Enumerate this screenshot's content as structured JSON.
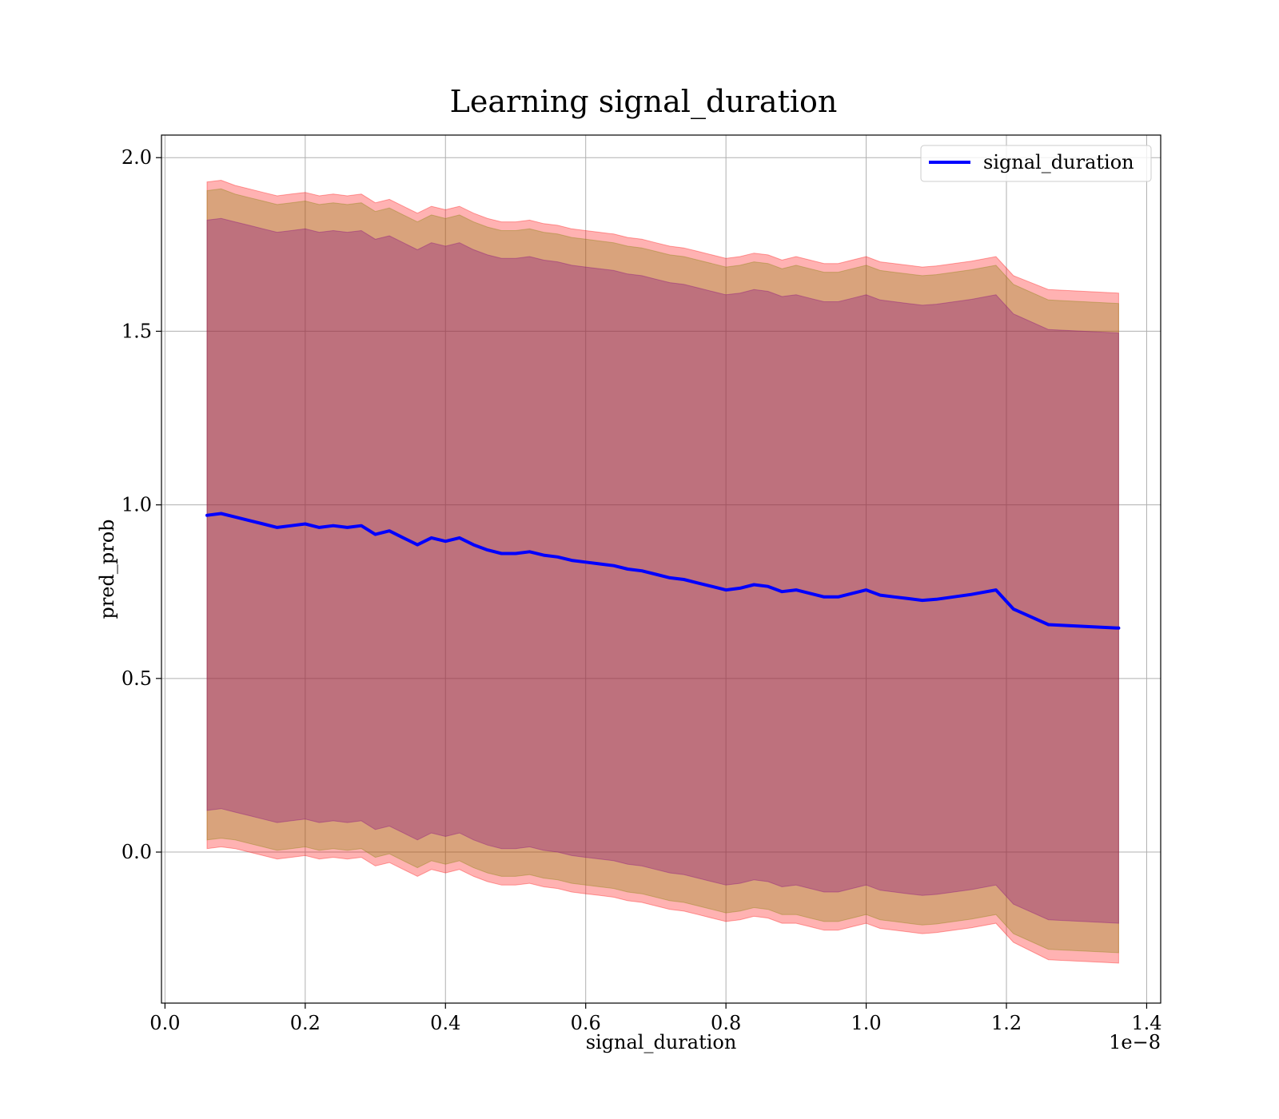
{
  "chart_data": {
    "type": "line",
    "title": "Learning signal_duration",
    "xlabel": "signal_duration",
    "ylabel": "pred_prob",
    "x_offset_label": "1e−8",
    "xlim": [
      -0.005,
      1.42
    ],
    "ylim": [
      -0.435,
      2.065
    ],
    "xticks": [
      0.0,
      0.2,
      0.4,
      0.6,
      0.8,
      1.0,
      1.2,
      1.4
    ],
    "xtick_labels": [
      "0.0",
      "0.2",
      "0.4",
      "0.6",
      "0.8",
      "1.0",
      "1.2",
      "1.4"
    ],
    "yticks": [
      0.0,
      0.5,
      1.0,
      1.5,
      2.0
    ],
    "ytick_labels": [
      "0.0",
      "0.5",
      "1.0",
      "1.5",
      "2.0"
    ],
    "grid": true,
    "legend_position": "upper-right",
    "series": [
      {
        "name": "signal_duration",
        "color": "#0000ff",
        "x": [
          0.06,
          0.08,
          0.1,
          0.12,
          0.14,
          0.16,
          0.18,
          0.2,
          0.22,
          0.24,
          0.26,
          0.28,
          0.3,
          0.32,
          0.34,
          0.36,
          0.38,
          0.4,
          0.42,
          0.44,
          0.46,
          0.48,
          0.5,
          0.52,
          0.54,
          0.56,
          0.58,
          0.6,
          0.62,
          0.64,
          0.66,
          0.68,
          0.7,
          0.72,
          0.74,
          0.76,
          0.78,
          0.8,
          0.82,
          0.84,
          0.86,
          0.88,
          0.9,
          0.92,
          0.94,
          0.96,
          0.98,
          1.0,
          1.02,
          1.04,
          1.06,
          1.08,
          1.1,
          1.15,
          1.185,
          1.21,
          1.26,
          1.36
        ],
        "values": [
          0.97,
          0.975,
          0.965,
          0.955,
          0.945,
          0.935,
          0.94,
          0.945,
          0.935,
          0.94,
          0.935,
          0.94,
          0.915,
          0.925,
          0.905,
          0.885,
          0.905,
          0.895,
          0.905,
          0.885,
          0.87,
          0.86,
          0.86,
          0.865,
          0.855,
          0.85,
          0.84,
          0.835,
          0.83,
          0.825,
          0.815,
          0.81,
          0.8,
          0.79,
          0.785,
          0.775,
          0.765,
          0.755,
          0.76,
          0.77,
          0.765,
          0.75,
          0.755,
          0.745,
          0.735,
          0.735,
          0.745,
          0.755,
          0.74,
          0.735,
          0.73,
          0.725,
          0.728,
          0.742,
          0.755,
          0.7,
          0.655,
          0.645
        ]
      }
    ],
    "bands": [
      {
        "name": "outer",
        "color": "#ff0000",
        "opacity": 0.3,
        "half_width": [
          0.96,
          0.96,
          0.955,
          0.955,
          0.955,
          0.955,
          0.955,
          0.955,
          0.955,
          0.955,
          0.955,
          0.955,
          0.955,
          0.955,
          0.955,
          0.955,
          0.955,
          0.955,
          0.955,
          0.955,
          0.955,
          0.955,
          0.955,
          0.955,
          0.955,
          0.955,
          0.955,
          0.955,
          0.955,
          0.955,
          0.955,
          0.955,
          0.955,
          0.955,
          0.955,
          0.955,
          0.955,
          0.955,
          0.955,
          0.955,
          0.955,
          0.955,
          0.96,
          0.96,
          0.96,
          0.96,
          0.96,
          0.96,
          0.96,
          0.96,
          0.96,
          0.96,
          0.96,
          0.96,
          0.96,
          0.96,
          0.965,
          0.965
        ]
      },
      {
        "name": "middle",
        "color": "#808000",
        "opacity": 0.3,
        "half_width": [
          0.935,
          0.935,
          0.93,
          0.93,
          0.93,
          0.93,
          0.93,
          0.93,
          0.93,
          0.93,
          0.93,
          0.93,
          0.93,
          0.93,
          0.93,
          0.93,
          0.93,
          0.93,
          0.93,
          0.93,
          0.93,
          0.93,
          0.93,
          0.93,
          0.93,
          0.93,
          0.93,
          0.93,
          0.93,
          0.93,
          0.93,
          0.93,
          0.93,
          0.93,
          0.93,
          0.93,
          0.93,
          0.93,
          0.93,
          0.93,
          0.93,
          0.93,
          0.935,
          0.935,
          0.935,
          0.935,
          0.935,
          0.935,
          0.935,
          0.935,
          0.935,
          0.935,
          0.935,
          0.935,
          0.935,
          0.935,
          0.935,
          0.935
        ]
      },
      {
        "name": "inner",
        "color": "#800080",
        "opacity": 0.3,
        "half_width": [
          0.85,
          0.85,
          0.85,
          0.85,
          0.85,
          0.85,
          0.85,
          0.85,
          0.85,
          0.85,
          0.85,
          0.85,
          0.85,
          0.85,
          0.85,
          0.85,
          0.85,
          0.85,
          0.85,
          0.85,
          0.85,
          0.85,
          0.85,
          0.85,
          0.85,
          0.85,
          0.85,
          0.85,
          0.85,
          0.85,
          0.85,
          0.85,
          0.85,
          0.85,
          0.85,
          0.85,
          0.85,
          0.85,
          0.85,
          0.85,
          0.85,
          0.85,
          0.85,
          0.85,
          0.85,
          0.85,
          0.85,
          0.85,
          0.85,
          0.85,
          0.85,
          0.85,
          0.85,
          0.85,
          0.85,
          0.85,
          0.85,
          0.85
        ]
      }
    ]
  }
}
